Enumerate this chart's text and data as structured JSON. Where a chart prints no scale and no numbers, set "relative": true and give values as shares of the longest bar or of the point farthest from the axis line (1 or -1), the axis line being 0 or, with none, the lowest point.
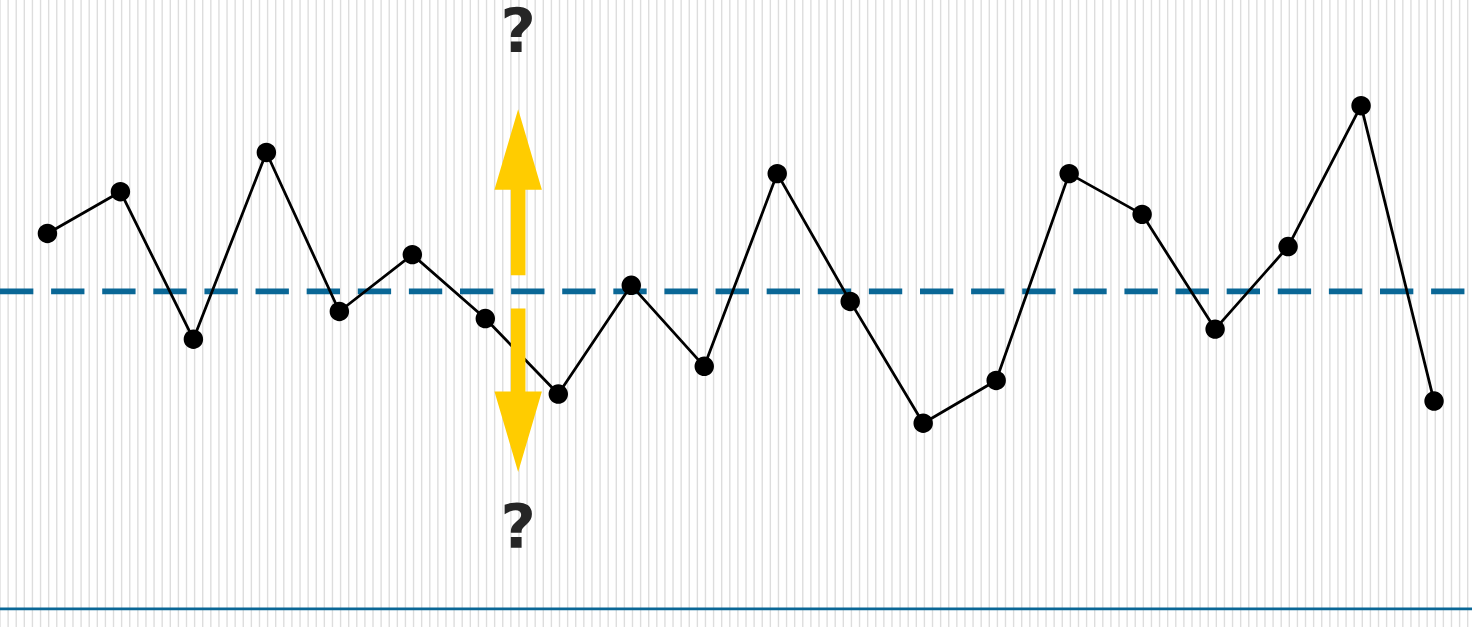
{
  "chart_data": {
    "type": "line",
    "relative": true,
    "categories": [
      null,
      null,
      null,
      null,
      null,
      null,
      null,
      null,
      null,
      null,
      null,
      null,
      null,
      null,
      null,
      null,
      null,
      null,
      null,
      null
    ],
    "series": [
      {
        "color": "#000000",
        "values": [
          0.746,
          0.829,
          0.536,
          0.907,
          0.591,
          0.704,
          0.577,
          0.427,
          0.643,
          0.482,
          0.865,
          0.611,
          0.369,
          0.454,
          0.865,
          0.784,
          0.556,
          0.72,
          1.0,
          0.413
        ]
      }
    ],
    "marker": "circle",
    "line_style": "solid",
    "grid": "x",
    "legend": false,
    "tick_labels": false,
    "ref_lines": [
      {
        "axis": "y",
        "value": 0.631,
        "color": "#0a6796",
        "line_style": "dashed"
      }
    ],
    "annotations": [
      "?",
      "?"
    ]
  }
}
